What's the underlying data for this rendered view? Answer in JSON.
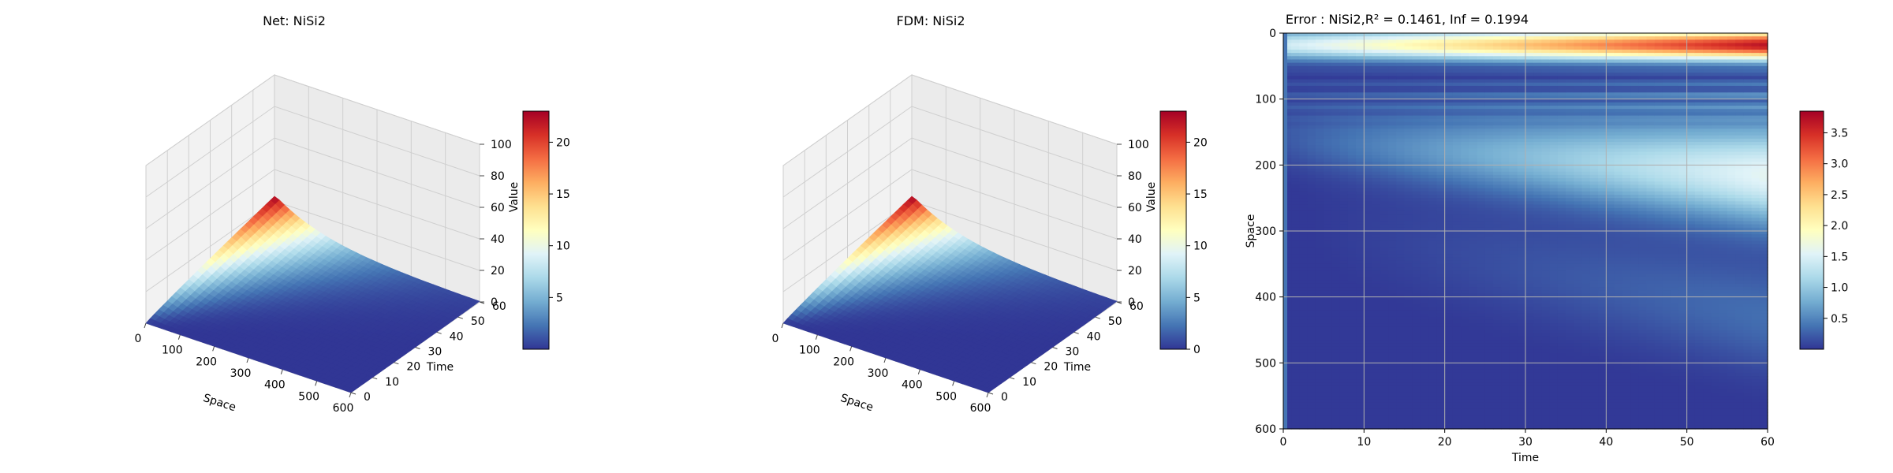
{
  "chart_data": [
    {
      "type": "surface3d",
      "title": "Net: NiSi2",
      "xlabel": "Space",
      "ylabel": "Time",
      "zlabel": "Value",
      "xlim": [
        0,
        600
      ],
      "ylim": [
        0,
        60
      ],
      "zlim": [
        0,
        100
      ],
      "xticks": [
        "0",
        "100",
        "200",
        "300",
        "400",
        "500",
        "600"
      ],
      "yticks": [
        "0",
        "10",
        "20",
        "30",
        "40",
        "50",
        "60"
      ],
      "zticks": [
        "0",
        "20",
        "40",
        "60",
        "80",
        "100"
      ],
      "colorbar": {
        "min": 0,
        "max": 23,
        "ticks": [
          "5",
          "10",
          "15",
          "20"
        ]
      },
      "peak_value": 23,
      "colormap": [
        "#313695",
        "#4575b4",
        "#74add1",
        "#abd9e9",
        "#e0f3f8",
        "#ffffbf",
        "#fee090",
        "#fdae61",
        "#f46d43",
        "#d73027",
        "#a50026"
      ]
    },
    {
      "type": "surface3d",
      "title": "FDM: NiSi2",
      "xlabel": "Space",
      "ylabel": "Time",
      "zlabel": "Value",
      "xlim": [
        0,
        600
      ],
      "ylim": [
        0,
        60
      ],
      "zlim": [
        0,
        100
      ],
      "xticks": [
        "0",
        "100",
        "200",
        "300",
        "400",
        "500",
        "600"
      ],
      "yticks": [
        "0",
        "10",
        "20",
        "30",
        "40",
        "50",
        "60"
      ],
      "zticks": [
        "0",
        "20",
        "40",
        "60",
        "80",
        "100"
      ],
      "colorbar": {
        "min": 0,
        "max": 23,
        "ticks": [
          "0",
          "5",
          "10",
          "15",
          "20"
        ]
      },
      "peak_value": 23,
      "colormap": [
        "#313695",
        "#4575b4",
        "#74add1",
        "#abd9e9",
        "#e0f3f8",
        "#ffffbf",
        "#fee090",
        "#fdae61",
        "#f46d43",
        "#d73027",
        "#a50026"
      ]
    },
    {
      "type": "heatmap",
      "title": "Error : NiSi2,R² = 0.1461, Inf = 0.1994",
      "xlabel": "Time",
      "ylabel": "Space",
      "xlim": [
        0,
        60
      ],
      "ylim": [
        600,
        0
      ],
      "xticks": [
        "0",
        "10",
        "20",
        "30",
        "40",
        "50",
        "60"
      ],
      "yticks": [
        "0",
        "100",
        "200",
        "300",
        "400",
        "500",
        "600"
      ],
      "grid": true,
      "colorbar": {
        "min": 0,
        "max": 3.85,
        "ticks": [
          "0.5",
          "1.0",
          "1.5",
          "2.0",
          "2.5",
          "3.0",
          "3.5"
        ]
      },
      "colormap": [
        "#313695",
        "#4575b4",
        "#74add1",
        "#abd9e9",
        "#e0f3f8",
        "#ffffbf",
        "#fee090",
        "#fdae61",
        "#f46d43",
        "#d73027",
        "#a50026"
      ]
    }
  ]
}
